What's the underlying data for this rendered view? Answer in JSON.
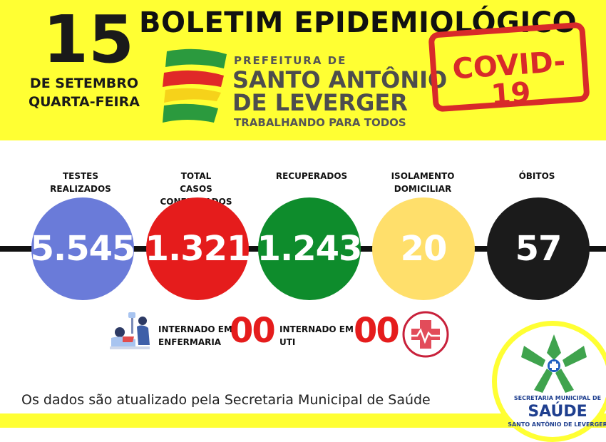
{
  "header": {
    "day": "15",
    "month_line": "DE SETEMBRO",
    "weekday": "QUARTA-FEIRA",
    "title": "BOLETIM EPIDEMIOLÓGICO",
    "prefeitura_small": "PREFEITURA DE",
    "prefeitura_line1": "SANTO ANTÔNIO",
    "prefeitura_line2": "DE LEVERGER",
    "slogan": "TRABALHANDO PARA TODOS",
    "stamp": "COVID-19"
  },
  "stats": [
    {
      "label_line1": "TESTES",
      "label_line2": "REALIZADOS",
      "value": "5.545",
      "color": "#6a7bd9"
    },
    {
      "label_line1": "TOTAL",
      "label_line2": "CASOS CONFIRMADOS",
      "value": "1.321",
      "color": "#e51c1c"
    },
    {
      "label_line1": "RECUPERADOS",
      "label_line2": "",
      "value": "1.243",
      "color": "#0e8c2c"
    },
    {
      "label_line1": "ISOLAMENTO",
      "label_line2": "DOMICILIAR",
      "value": "20",
      "color": "#ffdf6b"
    },
    {
      "label_line1": "ÓBITOS",
      "label_line2": "",
      "value": "57",
      "color": "#1b1b1b"
    }
  ],
  "hospital": {
    "ward_line1": "INTERNADO EM",
    "ward_line2": "ENFERMARIA",
    "ward_value": "00",
    "icu_line1": "INTERNADO EM",
    "icu_line2": "UTI",
    "icu_value": "00"
  },
  "footer": {
    "text": "Os dados são atualizado pela Secretaria Municipal de Saúde"
  },
  "seal": {
    "top": "SECRETARIA MUNICIPAL DE",
    "name": "SAÚDE",
    "bottom": "SANTO ANTÔNIO DE LEVERGER"
  }
}
